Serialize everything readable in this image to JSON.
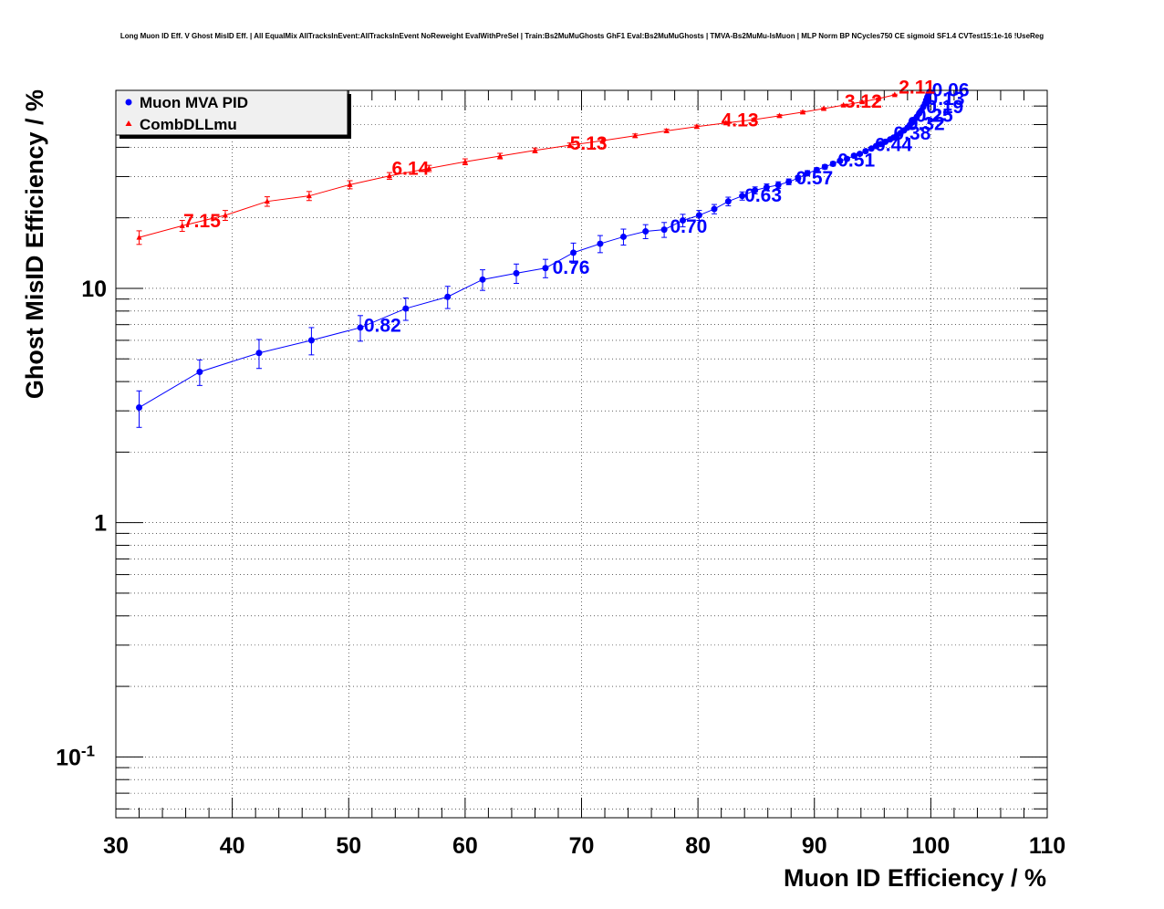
{
  "chart_data": {
    "type": "line",
    "title": "Long Muon ID Eff. V Ghost MisID Eff. | All EqualMix AllTracksInEvent:AllTracksInEvent NoReweight EvalWithPreSel | Train:Bs2MuMuGhosts GhF1 Eval:Bs2MuMuGhosts | TMVA-Bs2MuMu-IsMuon | MLP Norm BP NCycles750 CE sigmoid SF1.4 CVTest15:1e-16 !UseReg",
    "xlabel": "Muon ID Efficiency / %",
    "ylabel": "Ghost MisID Efficiency / %",
    "xlim": [
      30,
      110
    ],
    "ylim": [
      0.055,
      70
    ],
    "yscale": "log",
    "grid": true,
    "legend_position": "top-left",
    "x_ticks": [
      "30",
      "40",
      "50",
      "60",
      "70",
      "80",
      "90",
      "100",
      "110"
    ],
    "y_ticks": [
      {
        "value": 10,
        "label": "10"
      },
      {
        "value": 1,
        "label": "1"
      },
      {
        "value": 0.1,
        "label": "10",
        "sup": "-1"
      }
    ],
    "series": [
      {
        "name": "Muon MVA PID",
        "color": "#0000ff",
        "marker": "circle",
        "points": [
          {
            "x": 32.0,
            "y": 3.1,
            "err": 0.55
          },
          {
            "x": 37.2,
            "y": 4.4,
            "err": 0.55
          },
          {
            "x": 42.3,
            "y": 5.3,
            "err": 0.75
          },
          {
            "x": 46.8,
            "y": 6.0,
            "err": 0.8
          },
          {
            "x": 51.0,
            "y": 6.8,
            "err": 0.85
          },
          {
            "x": 54.9,
            "y": 8.2,
            "err": 0.9
          },
          {
            "x": 58.5,
            "y": 9.2,
            "err": 1.0
          },
          {
            "x": 61.5,
            "y": 10.9,
            "err": 1.1
          },
          {
            "x": 64.4,
            "y": 11.6,
            "err": 1.1
          },
          {
            "x": 66.9,
            "y": 12.2,
            "err": 1.1
          },
          {
            "x": 69.3,
            "y": 14.2,
            "err": 1.4
          },
          {
            "x": 71.6,
            "y": 15.5,
            "err": 1.3
          },
          {
            "x": 73.6,
            "y": 16.6,
            "err": 1.3
          },
          {
            "x": 75.5,
            "y": 17.5,
            "err": 1.2
          },
          {
            "x": 77.1,
            "y": 17.8,
            "err": 1.3
          },
          {
            "x": 78.7,
            "y": 19.5,
            "err": 1.2
          },
          {
            "x": 80.1,
            "y": 20.5,
            "err": 1.0
          },
          {
            "x": 81.4,
            "y": 21.8,
            "err": 1.0
          },
          {
            "x": 82.6,
            "y": 23.5,
            "err": 1.0
          },
          {
            "x": 83.8,
            "y": 24.8,
            "err": 1.0
          },
          {
            "x": 84.9,
            "y": 26.2,
            "err": 0.9
          },
          {
            "x": 85.9,
            "y": 27.0,
            "err": 0.9
          },
          {
            "x": 86.9,
            "y": 27.6,
            "err": 0.9
          },
          {
            "x": 87.8,
            "y": 28.5,
            "err": 0.8
          },
          {
            "x": 88.6,
            "y": 29.5,
            "err": 0.8
          },
          {
            "x": 89.4,
            "y": 31.0,
            "err": 0.8
          },
          {
            "x": 90.2,
            "y": 32.0,
            "err": 0.7
          },
          {
            "x": 90.9,
            "y": 33.0,
            "err": 0.7
          },
          {
            "x": 91.6,
            "y": 34.0,
            "err": 0.7
          },
          {
            "x": 92.2,
            "y": 35.0,
            "err": 0.6
          },
          {
            "x": 92.8,
            "y": 35.7,
            "err": 0.6
          },
          {
            "x": 93.4,
            "y": 36.8,
            "err": 0.6
          },
          {
            "x": 93.9,
            "y": 37.5,
            "err": 0.5
          },
          {
            "x": 94.4,
            "y": 38.5,
            "err": 0.5
          },
          {
            "x": 94.9,
            "y": 39.5,
            "err": 0.5
          },
          {
            "x": 95.3,
            "y": 40.5,
            "err": 0.5
          },
          {
            "x": 95.7,
            "y": 41.3,
            "err": 0.4
          },
          {
            "x": 96.1,
            "y": 42.2,
            "err": 0.4
          },
          {
            "x": 96.5,
            "y": 43.2,
            "err": 0.4
          },
          {
            "x": 96.8,
            "y": 44.0,
            "err": 0.4
          },
          {
            "x": 97.1,
            "y": 45.0,
            "err": 0.4
          },
          {
            "x": 97.4,
            "y": 46.0,
            "err": 0.3
          },
          {
            "x": 97.7,
            "y": 47.2,
            "err": 0.3
          },
          {
            "x": 98.0,
            "y": 48.5,
            "err": 0.3
          },
          {
            "x": 98.2,
            "y": 49.8,
            "err": 0.3
          },
          {
            "x": 98.4,
            "y": 51.0,
            "err": 0.3
          },
          {
            "x": 98.6,
            "y": 52.5,
            "err": 0.3
          },
          {
            "x": 98.8,
            "y": 54.0,
            "err": 0.2
          },
          {
            "x": 99.0,
            "y": 55.8,
            "err": 0.2
          },
          {
            "x": 99.2,
            "y": 57.5,
            "err": 0.2
          },
          {
            "x": 99.35,
            "y": 59.5,
            "err": 0.2
          },
          {
            "x": 99.5,
            "y": 61.5,
            "err": 0.2
          },
          {
            "x": 99.6,
            "y": 63.5,
            "err": 0.2
          },
          {
            "x": 99.7,
            "y": 65.5,
            "err": 0.2
          },
          {
            "x": 99.8,
            "y": 67.5,
            "err": 0.1
          },
          {
            "x": 99.9,
            "y": 69.0,
            "err": 0.1
          }
        ],
        "cut_labels": [
          {
            "text": "0.82",
            "x": 52.9,
            "y": 7.0
          },
          {
            "text": "0.76",
            "x": 69.1,
            "y": 12.4
          },
          {
            "text": "0.70",
            "x": 79.2,
            "y": 18.6
          },
          {
            "text": "0.63",
            "x": 85.6,
            "y": 25.2
          },
          {
            "text": "0.57",
            "x": 90.0,
            "y": 29.8
          },
          {
            "text": "0.51",
            "x": 93.6,
            "y": 35.5
          },
          {
            "text": "0.44",
            "x": 96.8,
            "y": 41.5
          },
          {
            "text": "0.38",
            "x": 98.4,
            "y": 46.3
          },
          {
            "text": "0.32",
            "x": 99.6,
            "y": 50.8
          },
          {
            "text": "0.25",
            "x": 100.3,
            "y": 55.3
          },
          {
            "text": "0.19",
            "x": 101.2,
            "y": 60.0
          },
          {
            "text": "0.13",
            "x": 101.3,
            "y": 65.2
          },
          {
            "text": "0.06",
            "x": 101.7,
            "y": 71.0
          }
        ]
      },
      {
        "name": "CombDLLmu",
        "color": "#ff0000",
        "marker": "triangle",
        "points": [
          {
            "x": 32.0,
            "y": 16.5,
            "err": 1.1
          },
          {
            "x": 35.7,
            "y": 18.5,
            "err": 1.0
          },
          {
            "x": 39.4,
            "y": 20.5,
            "err": 1.0
          },
          {
            "x": 43.0,
            "y": 23.5,
            "err": 1.1
          },
          {
            "x": 46.6,
            "y": 24.8,
            "err": 1.1
          },
          {
            "x": 50.1,
            "y": 27.7,
            "err": 1.1
          },
          {
            "x": 53.5,
            "y": 30.2,
            "err": 1.0
          },
          {
            "x": 56.9,
            "y": 32.5,
            "err": 1.0
          },
          {
            "x": 60.0,
            "y": 34.7,
            "err": 1.0
          },
          {
            "x": 63.0,
            "y": 36.7,
            "err": 1.0
          },
          {
            "x": 66.0,
            "y": 38.8,
            "err": 0.9
          },
          {
            "x": 69.0,
            "y": 40.8,
            "err": 0.9
          },
          {
            "x": 71.8,
            "y": 42.7,
            "err": 0.8
          },
          {
            "x": 74.6,
            "y": 44.8,
            "err": 0.8
          },
          {
            "x": 77.3,
            "y": 47.0,
            "err": 0.8
          },
          {
            "x": 79.9,
            "y": 49.0,
            "err": 0.7
          },
          {
            "x": 82.4,
            "y": 50.8,
            "err": 0.7
          },
          {
            "x": 84.8,
            "y": 52.5,
            "err": 0.6
          },
          {
            "x": 87.0,
            "y": 54.5,
            "err": 0.6
          },
          {
            "x": 89.0,
            "y": 56.5,
            "err": 0.6
          },
          {
            "x": 90.8,
            "y": 58.5,
            "err": 0.5
          },
          {
            "x": 92.5,
            "y": 60.5,
            "err": 0.5
          },
          {
            "x": 94.1,
            "y": 62.5,
            "err": 0.5
          },
          {
            "x": 95.5,
            "y": 64.5,
            "err": 0.5
          },
          {
            "x": 96.9,
            "y": 67.0,
            "err": 0.4
          }
        ],
        "cut_labels": [
          {
            "text": "7.15",
            "x": 37.4,
            "y": 19.6
          },
          {
            "text": "6.14",
            "x": 55.3,
            "y": 32.8
          },
          {
            "text": "5.13",
            "x": 70.6,
            "y": 42.0
          },
          {
            "text": "4.13",
            "x": 83.6,
            "y": 52.8
          },
          {
            "text": "3.12",
            "x": 94.2,
            "y": 63.5
          },
          {
            "text": "2.11",
            "x": 98.8,
            "y": 73.0
          }
        ]
      }
    ]
  }
}
